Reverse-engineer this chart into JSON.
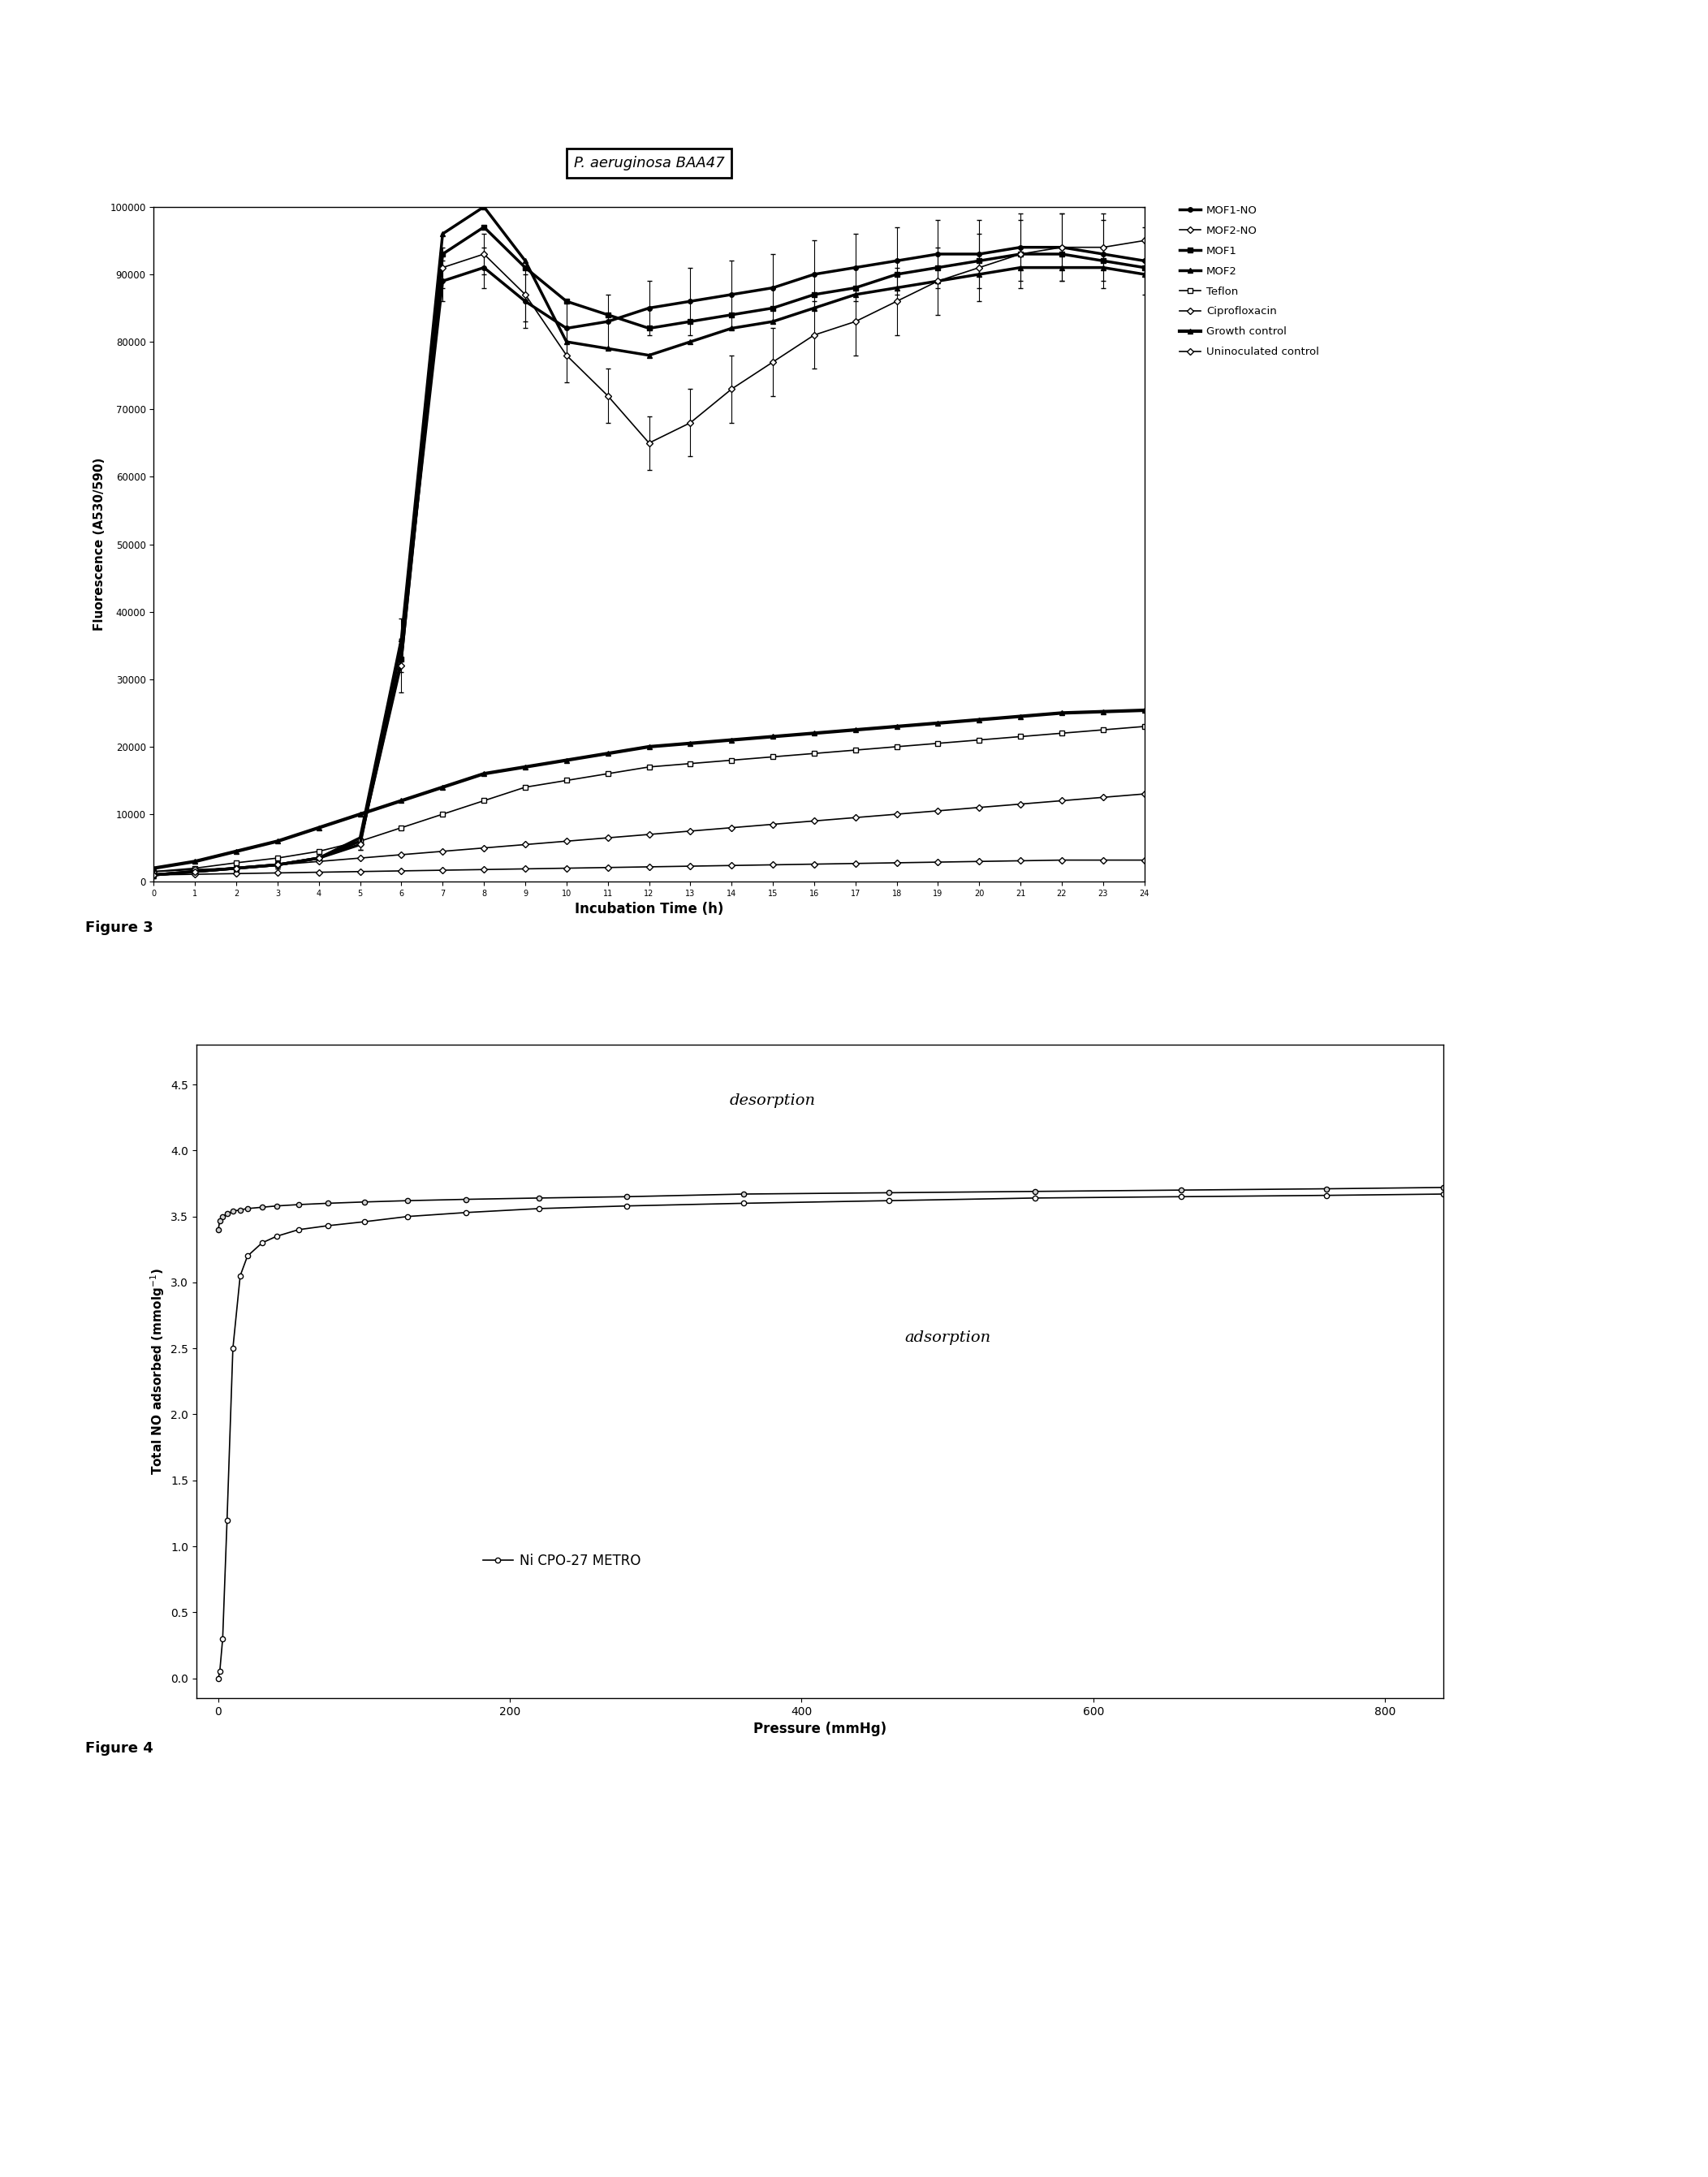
{
  "fig3_title": "P. aeruginosa BAA47",
  "fig3_xlabel": "Incubation Time (h)",
  "fig3_ylabel": "Fluorescence (A530/590)",
  "fig3_ylim": [
    0,
    100000
  ],
  "fig3_xlim": [
    0,
    24
  ],
  "fig3_yticks": [
    0,
    10000,
    20000,
    30000,
    40000,
    50000,
    60000,
    70000,
    80000,
    90000,
    100000
  ],
  "fig3_xticks": [
    0,
    1,
    2,
    3,
    4,
    5,
    6,
    7,
    8,
    9,
    10,
    11,
    12,
    13,
    14,
    15,
    16,
    17,
    18,
    19,
    20,
    21,
    22,
    23,
    24
  ],
  "mof1no_x": [
    0,
    1,
    2,
    3,
    4,
    5,
    6,
    7,
    8,
    9,
    10,
    11,
    12,
    13,
    14,
    15,
    16,
    17,
    18,
    19,
    20,
    21,
    22,
    23,
    24
  ],
  "mof1no_y": [
    1000,
    1500,
    2000,
    2500,
    3500,
    5500,
    35000,
    89000,
    91000,
    86000,
    82000,
    83000,
    85000,
    86000,
    87000,
    88000,
    90000,
    91000,
    92000,
    93000,
    93000,
    94000,
    94000,
    93000,
    92000
  ],
  "mof1no_yerr": [
    500,
    500,
    500,
    500,
    600,
    800,
    4000,
    3000,
    3000,
    4000,
    4000,
    4000,
    4000,
    5000,
    5000,
    5000,
    5000,
    5000,
    5000,
    5000,
    5000,
    5000,
    5000,
    5000,
    5000
  ],
  "mof2no_x": [
    0,
    1,
    2,
    3,
    4,
    5,
    6,
    7,
    8,
    9,
    10,
    11,
    12,
    13,
    14,
    15,
    16,
    17,
    18,
    19,
    20,
    21,
    22,
    23,
    24
  ],
  "mof2no_y": [
    1000,
    1500,
    2000,
    2500,
    3500,
    5500,
    32000,
    91000,
    93000,
    87000,
    78000,
    72000,
    65000,
    68000,
    73000,
    77000,
    81000,
    83000,
    86000,
    89000,
    91000,
    93000,
    94000,
    94000,
    95000
  ],
  "mof2no_yerr": [
    500,
    500,
    500,
    500,
    600,
    800,
    4000,
    3000,
    3000,
    4000,
    4000,
    4000,
    4000,
    5000,
    5000,
    5000,
    5000,
    5000,
    5000,
    5000,
    5000,
    5000,
    5000,
    5000,
    5000
  ],
  "mof1_x": [
    0,
    1,
    2,
    3,
    4,
    5,
    6,
    7,
    8,
    9,
    10,
    11,
    12,
    13,
    14,
    15,
    16,
    17,
    18,
    19,
    20,
    21,
    22,
    23,
    24
  ],
  "mof1_y": [
    1000,
    1500,
    2000,
    2500,
    3500,
    6000,
    33000,
    93000,
    97000,
    91000,
    86000,
    84000,
    82000,
    83000,
    84000,
    85000,
    87000,
    88000,
    90000,
    91000,
    92000,
    93000,
    93000,
    92000,
    91000
  ],
  "mof2_x": [
    0,
    1,
    2,
    3,
    4,
    5,
    6,
    7,
    8,
    9,
    10,
    11,
    12,
    13,
    14,
    15,
    16,
    17,
    18,
    19,
    20,
    21,
    22,
    23,
    24
  ],
  "mof2_y": [
    1000,
    1500,
    2000,
    2500,
    3500,
    6500,
    36000,
    96000,
    100000,
    92000,
    80000,
    79000,
    78000,
    80000,
    82000,
    83000,
    85000,
    87000,
    88000,
    89000,
    90000,
    91000,
    91000,
    91000,
    90000
  ],
  "teflon_x": [
    0,
    1,
    2,
    3,
    4,
    5,
    6,
    7,
    8,
    9,
    10,
    11,
    12,
    13,
    14,
    15,
    16,
    17,
    18,
    19,
    20,
    21,
    22,
    23,
    24
  ],
  "teflon_y": [
    1500,
    2000,
    2800,
    3500,
    4500,
    6000,
    8000,
    10000,
    12000,
    14000,
    15000,
    16000,
    17000,
    17500,
    18000,
    18500,
    19000,
    19500,
    20000,
    20500,
    21000,
    21500,
    22000,
    22500,
    23000
  ],
  "cipro_x": [
    0,
    1,
    2,
    3,
    4,
    5,
    6,
    7,
    8,
    9,
    10,
    11,
    12,
    13,
    14,
    15,
    16,
    17,
    18,
    19,
    20,
    21,
    22,
    23,
    24
  ],
  "cipro_y": [
    1500,
    1800,
    2000,
    2500,
    3000,
    3500,
    4000,
    4500,
    5000,
    5500,
    6000,
    6500,
    7000,
    7500,
    8000,
    8500,
    9000,
    9500,
    10000,
    10500,
    11000,
    11500,
    12000,
    12500,
    13000
  ],
  "growth_x": [
    0,
    1,
    2,
    3,
    4,
    5,
    6,
    7,
    8,
    9,
    10,
    11,
    12,
    13,
    14,
    15,
    16,
    17,
    18,
    19,
    20,
    21,
    22,
    23,
    24
  ],
  "growth_y": [
    2000,
    3000,
    4500,
    6000,
    8000,
    10000,
    12000,
    14000,
    16000,
    17000,
    18000,
    19000,
    20000,
    20500,
    21000,
    21500,
    22000,
    22500,
    23000,
    23500,
    24000,
    24500,
    25000,
    25200,
    25400
  ],
  "uninoc_x": [
    0,
    1,
    2,
    3,
    4,
    5,
    6,
    7,
    8,
    9,
    10,
    11,
    12,
    13,
    14,
    15,
    16,
    17,
    18,
    19,
    20,
    21,
    22,
    23,
    24
  ],
  "uninoc_y": [
    1000,
    1100,
    1200,
    1300,
    1400,
    1500,
    1600,
    1700,
    1800,
    1900,
    2000,
    2100,
    2200,
    2300,
    2400,
    2500,
    2600,
    2700,
    2800,
    2900,
    3000,
    3100,
    3200,
    3200,
    3200
  ],
  "fig4_xlabel": "Pressure (mmHg)",
  "fig4_ylabel": "Total NO adsorbed (mmolg⁻¹)",
  "fig4_ylim": [
    -0.15,
    4.8
  ],
  "fig4_xlim": [
    -15,
    840
  ],
  "fig4_yticks": [
    0.0,
    0.5,
    1.0,
    1.5,
    2.0,
    2.5,
    3.0,
    3.5,
    4.0,
    4.5
  ],
  "fig4_xticks": [
    0,
    200,
    400,
    600,
    800
  ],
  "ads_x": [
    0,
    1,
    3,
    6,
    10,
    15,
    20,
    30,
    40,
    55,
    75,
    100,
    130,
    170,
    220,
    280,
    360,
    460,
    560,
    660,
    760,
    840
  ],
  "ads_y": [
    0.0,
    0.05,
    0.3,
    1.2,
    2.5,
    3.05,
    3.2,
    3.3,
    3.35,
    3.4,
    3.43,
    3.46,
    3.5,
    3.53,
    3.56,
    3.58,
    3.6,
    3.62,
    3.64,
    3.65,
    3.66,
    3.67
  ],
  "des_x": [
    840,
    760,
    660,
    560,
    460,
    360,
    280,
    220,
    170,
    130,
    100,
    75,
    55,
    40,
    30,
    20,
    15,
    10,
    6,
    3,
    1,
    0
  ],
  "des_y": [
    3.72,
    3.71,
    3.7,
    3.69,
    3.68,
    3.67,
    3.65,
    3.64,
    3.63,
    3.62,
    3.61,
    3.6,
    3.59,
    3.58,
    3.57,
    3.56,
    3.55,
    3.54,
    3.52,
    3.5,
    3.47,
    3.4
  ],
  "fig4_legend": "Ni CPO-27 METRO",
  "fig4_ads_label": "adsorption",
  "fig4_des_label": "desorption",
  "figure3_label": "Figure 3",
  "figure4_label": "Figure 4",
  "bg_color": "#ffffff",
  "line_color": "#000000"
}
